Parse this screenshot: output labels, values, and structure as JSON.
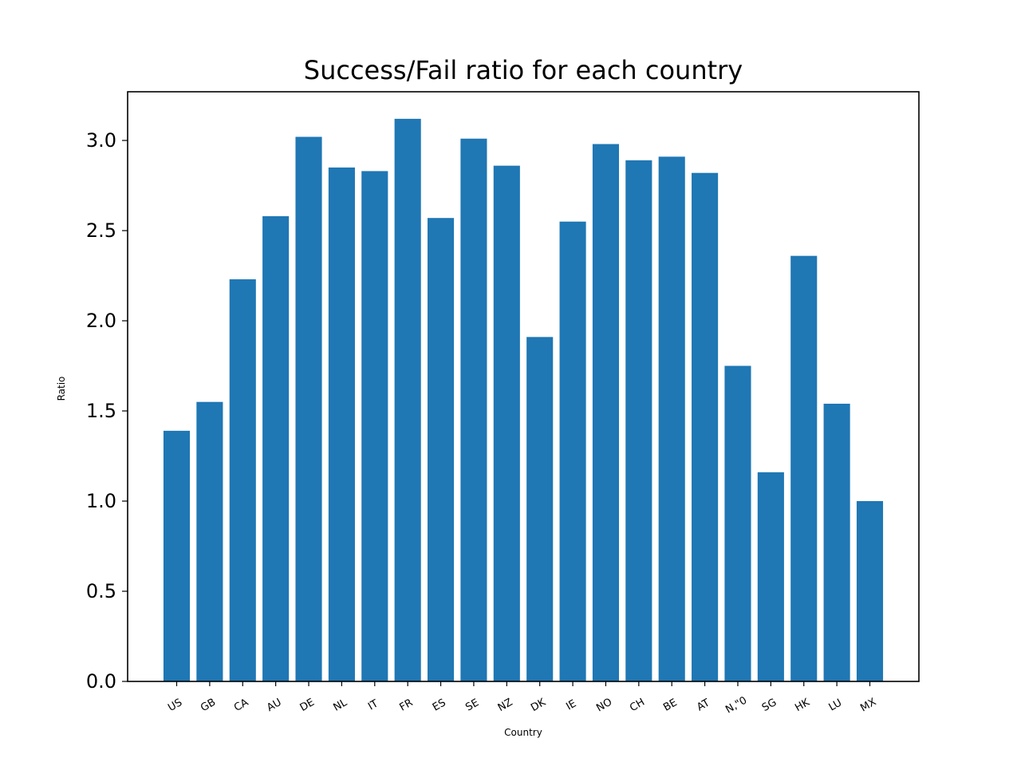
{
  "chart_data": {
    "type": "bar",
    "title": "Success/Fail ratio for each country",
    "xlabel": "Country",
    "ylabel": "Ratio",
    "ylim": [
      0,
      3.27
    ],
    "yticks": [
      "0.0",
      "0.5",
      "1.0",
      "1.5",
      "2.0",
      "2.5",
      "3.0"
    ],
    "grid": false,
    "bar_color": "#1f77b4",
    "categories": [
      "US",
      "GB",
      "CA",
      "AU",
      "DE",
      "NL",
      "IT",
      "FR",
      "ES",
      "SE",
      "NZ",
      "DK",
      "IE",
      "NO",
      "CH",
      "BE",
      "AT",
      "N,\"0",
      "SG",
      "HK",
      "LU",
      "MX"
    ],
    "values": [
      1.39,
      1.55,
      2.23,
      2.58,
      3.02,
      2.85,
      2.83,
      3.12,
      2.57,
      3.01,
      2.86,
      1.91,
      2.55,
      2.98,
      2.89,
      2.91,
      2.82,
      1.75,
      1.16,
      2.36,
      1.54,
      1.0
    ]
  }
}
